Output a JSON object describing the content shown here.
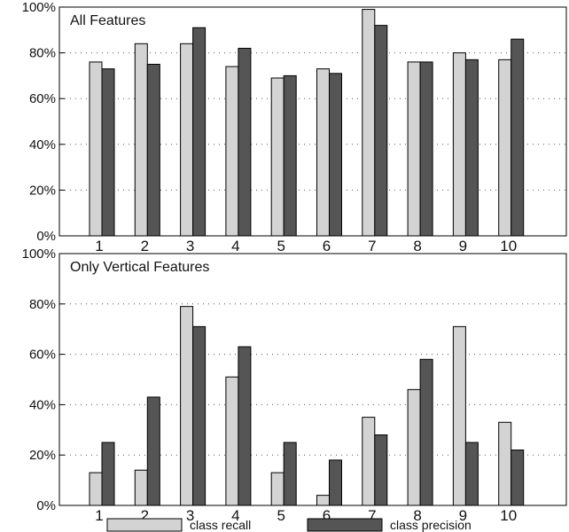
{
  "chart_data": [
    {
      "type": "bar",
      "title": "All Features",
      "categories": [
        "1",
        "2",
        "3",
        "4",
        "5",
        "6",
        "7",
        "8",
        "9",
        "10"
      ],
      "series": [
        {
          "name": "class recall",
          "color": "#d3d3d3",
          "values": [
            76,
            84,
            84,
            74,
            69,
            73,
            99,
            76,
            80,
            77
          ]
        },
        {
          "name": "class precision",
          "color": "#555555",
          "values": [
            73,
            75,
            91,
            82,
            70,
            71,
            92,
            76,
            77,
            86
          ]
        }
      ],
      "ylim": [
        0,
        100
      ],
      "yticks": [
        "0%",
        "20%",
        "40%",
        "60%",
        "80%",
        "100%"
      ],
      "grid": true
    },
    {
      "type": "bar",
      "title": "Only Vertical Features",
      "categories": [
        "1",
        "2",
        "3",
        "4",
        "5",
        "6",
        "7",
        "8",
        "9",
        "10"
      ],
      "series": [
        {
          "name": "class recall",
          "color": "#d3d3d3",
          "values": [
            13,
            14,
            79,
            51,
            13,
            4,
            35,
            46,
            71,
            33
          ]
        },
        {
          "name": "class precision",
          "color": "#555555",
          "values": [
            25,
            43,
            71,
            63,
            25,
            18,
            28,
            58,
            25,
            22
          ]
        }
      ],
      "ylim": [
        0,
        100
      ],
      "yticks": [
        "0%",
        "20%",
        "40%",
        "60%",
        "80%",
        "100%"
      ],
      "grid": true
    }
  ],
  "legend": {
    "position": "bottom",
    "items": [
      {
        "label": "class recall",
        "color": "#d3d3d3"
      },
      {
        "label": "class precision",
        "color": "#555555"
      }
    ]
  }
}
